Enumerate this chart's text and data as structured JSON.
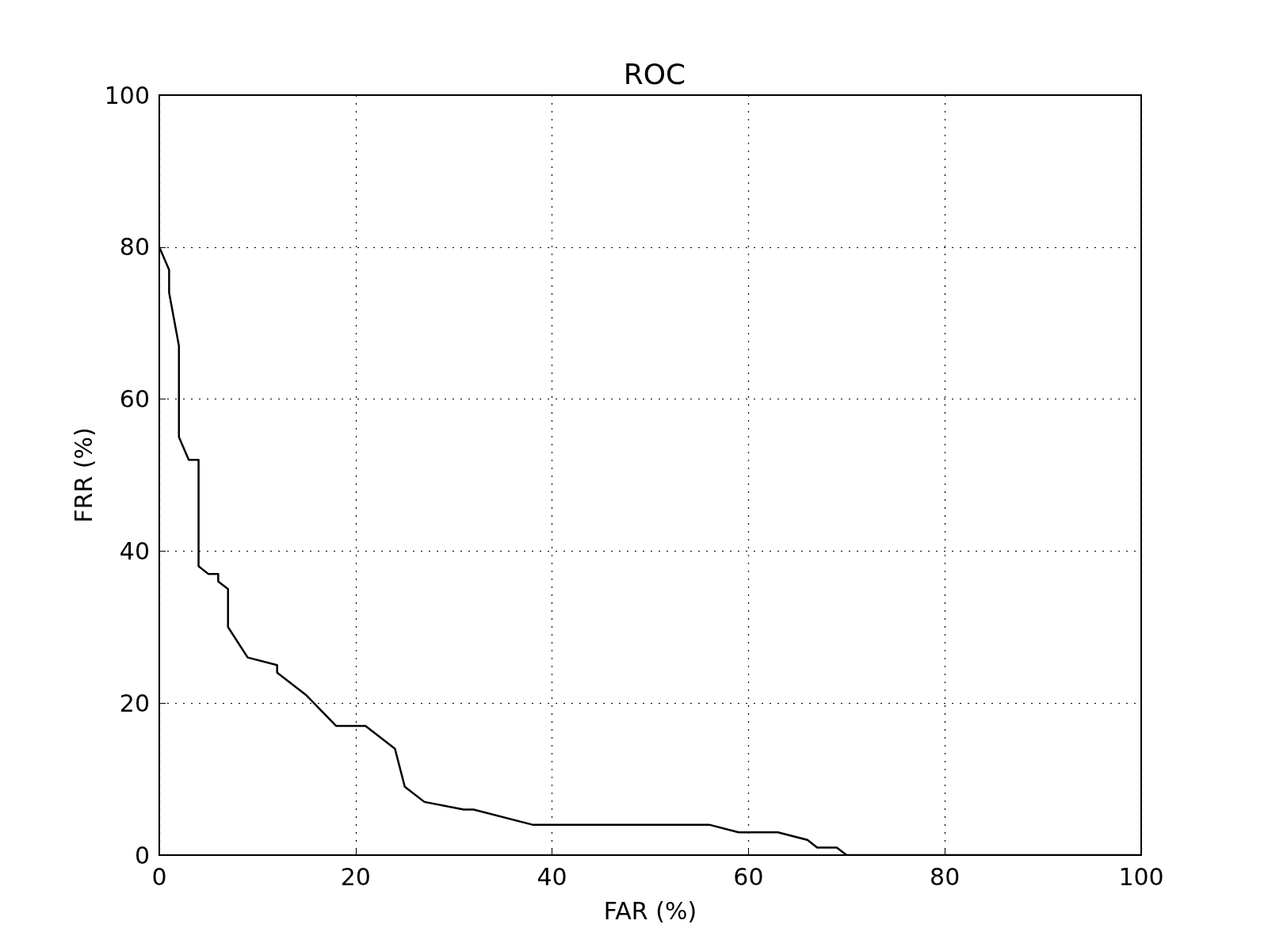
{
  "chart_data": {
    "type": "line",
    "title": "ROC",
    "xlabel": "FAR (%)",
    "ylabel": "FRR (%)",
    "series": [
      {
        "color": "#000000",
        "x": [
          0,
          1,
          1,
          2,
          2,
          3,
          4,
          4,
          5,
          6,
          6,
          7,
          7,
          9,
          12,
          12,
          15,
          18,
          21,
          24,
          25,
          27,
          31,
          32,
          38,
          56,
          59,
          63,
          66,
          67,
          69,
          70,
          100
        ],
        "values": [
          80,
          77,
          74,
          67,
          55,
          52,
          52,
          38,
          37,
          37,
          36,
          35,
          30,
          26,
          25,
          24,
          21,
          17,
          17,
          14,
          9,
          7,
          6,
          6,
          4,
          4,
          3,
          3,
          2,
          1,
          1,
          0,
          0
        ]
      }
    ],
    "xlim": [
      0,
      100
    ],
    "xticks": [
      0,
      20,
      40,
      60,
      80,
      100
    ],
    "ylim": [
      0,
      100
    ],
    "yticks": [
      0,
      20,
      40,
      60,
      80,
      100
    ],
    "grid": true,
    "marker": "none",
    "line_style": "solid"
  }
}
